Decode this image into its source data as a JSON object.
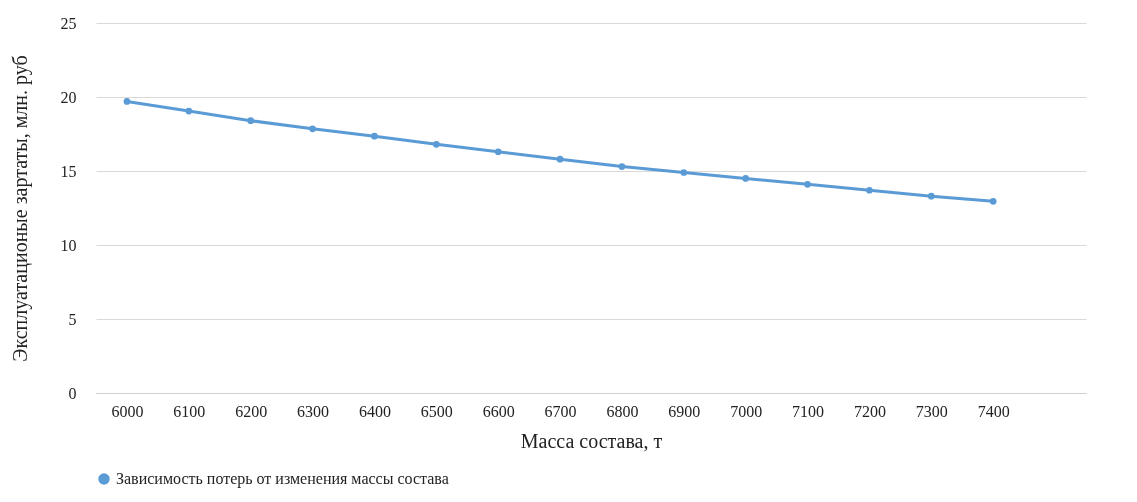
{
  "chart_data": {
    "type": "line",
    "xlabel": "Масса состава, т",
    "ylabel": "Эксплуатационые зартаты, млн. руб",
    "categories": [
      "6000",
      "6100",
      "6200",
      "6300",
      "6400",
      "6500",
      "6600",
      "6700",
      "6800",
      "6900",
      "7000",
      "7100",
      "7200",
      "7300",
      "7400",
      null
    ],
    "series": [
      {
        "name": "Зависимость потерь от изменения массы состава",
        "color": "#5b9bd5",
        "values": [
          19.7,
          19.05,
          18.4,
          17.85,
          17.35,
          16.8,
          16.3,
          15.8,
          15.3,
          14.9,
          14.5,
          14.1,
          13.7,
          13.3,
          12.95,
          null
        ]
      }
    ],
    "ylim": [
      0,
      25
    ],
    "yticks": [
      0,
      5,
      10,
      15,
      20,
      25
    ],
    "grid": "y",
    "legend": "bottom",
    "marker": "circle",
    "line_style": "solid"
  }
}
